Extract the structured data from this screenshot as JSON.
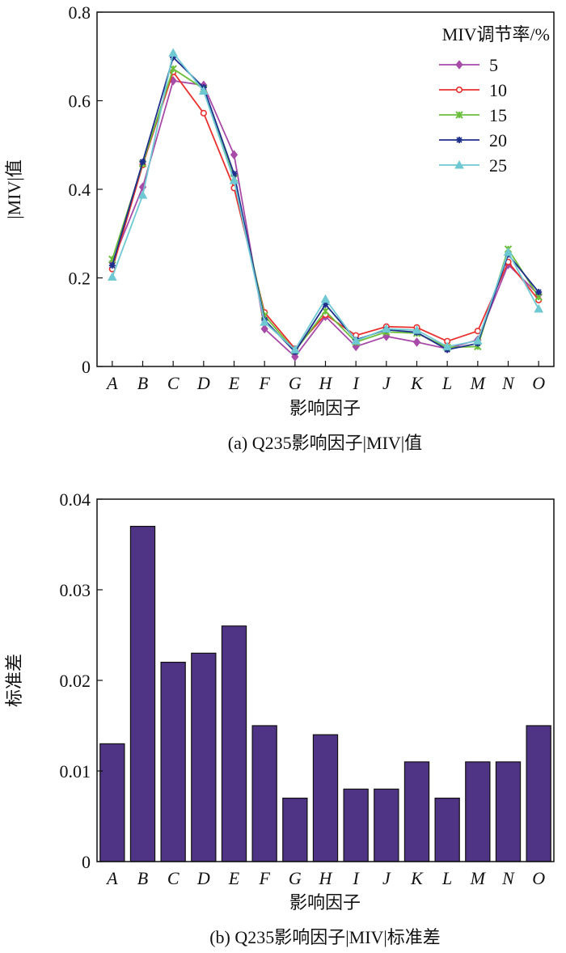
{
  "chart_data": [
    {
      "type": "line",
      "caption": "(a) Q235影响因子|MIV|值",
      "xlabel": "影响因子",
      "ylabel": "|MIV|值",
      "categories": [
        "A",
        "B",
        "C",
        "D",
        "E",
        "F",
        "G",
        "H",
        "I",
        "J",
        "K",
        "L",
        "M",
        "N",
        "O"
      ],
      "ylim": [
        0,
        0.8
      ],
      "yticks": [
        "0",
        "0.2",
        "0.4",
        "0.6",
        "0.8"
      ],
      "legend_title": "MIV调节率/%",
      "legend_position": "top-right",
      "series": [
        {
          "name": "5",
          "color": "#a74aa8",
          "marker": "diamond",
          "values": [
            0.235,
            0.405,
            0.645,
            0.635,
            0.478,
            0.085,
            0.022,
            0.113,
            0.045,
            0.068,
            0.055,
            0.04,
            0.06,
            0.23,
            0.162
          ]
        },
        {
          "name": "10",
          "color": "#e8302e",
          "marker": "circle",
          "values": [
            0.22,
            0.455,
            0.665,
            0.572,
            0.403,
            0.122,
            0.04,
            0.117,
            0.07,
            0.09,
            0.088,
            0.057,
            0.08,
            0.236,
            0.15
          ]
        },
        {
          "name": "15",
          "color": "#6bbf3a",
          "marker": "x",
          "values": [
            0.242,
            0.458,
            0.672,
            0.627,
            0.425,
            0.115,
            0.035,
            0.125,
            0.055,
            0.078,
            0.075,
            0.043,
            0.045,
            0.265,
            0.157
          ]
        },
        {
          "name": "20",
          "color": "#1e2f8c",
          "marker": "star",
          "values": [
            0.228,
            0.462,
            0.698,
            0.63,
            0.435,
            0.105,
            0.033,
            0.14,
            0.06,
            0.083,
            0.077,
            0.038,
            0.052,
            0.253,
            0.168
          ]
        },
        {
          "name": "25",
          "color": "#6fc9d3",
          "marker": "triangle",
          "values": [
            0.202,
            0.387,
            0.708,
            0.622,
            0.42,
            0.1,
            0.038,
            0.152,
            0.058,
            0.085,
            0.082,
            0.045,
            0.058,
            0.258,
            0.13
          ]
        }
      ]
    },
    {
      "type": "bar",
      "caption": "(b) Q235影响因子|MIV|标准差",
      "xlabel": "影响因子",
      "ylabel": "标准差",
      "categories": [
        "A",
        "B",
        "C",
        "D",
        "E",
        "F",
        "G",
        "H",
        "I",
        "J",
        "K",
        "L",
        "M",
        "N",
        "O"
      ],
      "ylim": [
        0,
        0.04
      ],
      "yticks": [
        "0",
        "0.01",
        "0.02",
        "0.03",
        "0.04"
      ],
      "bar_color": "#4f3384",
      "values": [
        0.013,
        0.037,
        0.022,
        0.023,
        0.026,
        0.015,
        0.007,
        0.014,
        0.008,
        0.008,
        0.011,
        0.007,
        0.011,
        0.011,
        0.015
      ]
    }
  ]
}
